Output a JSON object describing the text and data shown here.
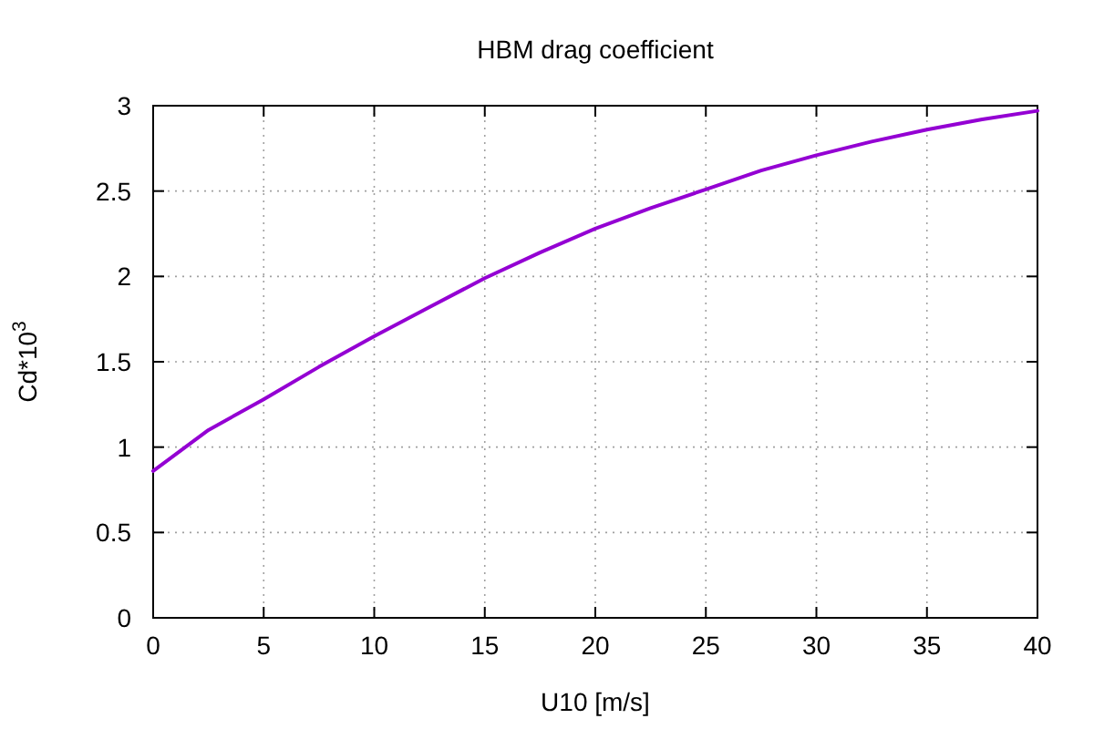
{
  "chart_data": {
    "type": "line",
    "title": "HBM drag coefficient",
    "xlabel": "U10 [m/s]",
    "ylabel": "Cd*10$^{3}$",
    "x": [
      0,
      2.5,
      5,
      7.5,
      10,
      12.5,
      15,
      17.5,
      20,
      22.5,
      25,
      27.5,
      30,
      32.5,
      35,
      37.5,
      40
    ],
    "series": [
      {
        "color": "#9400d3",
        "values": [
          0.86,
          1.1,
          1.28,
          1.47,
          1.65,
          1.82,
          1.99,
          2.14,
          2.28,
          2.4,
          2.51,
          2.62,
          2.71,
          2.79,
          2.86,
          2.92,
          2.97
        ]
      }
    ],
    "xlim": [
      0,
      40
    ],
    "ylim": [
      0,
      3
    ],
    "xticks": [
      0,
      5,
      10,
      15,
      20,
      25,
      30,
      35,
      40
    ],
    "yticks": [
      0,
      0.5,
      1,
      1.5,
      2,
      2.5,
      3
    ],
    "grid": true,
    "line_style": "solid",
    "marker": "none"
  }
}
